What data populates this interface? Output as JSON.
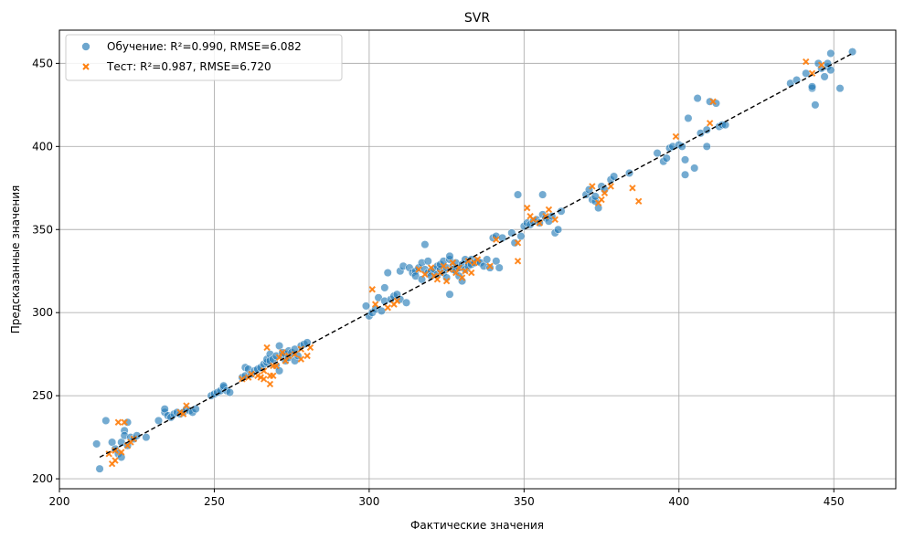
{
  "chart_data": {
    "type": "scatter",
    "title": "SVR",
    "xlabel": "Фактические значения",
    "ylabel": "Предсказанные значения",
    "xlim": [
      200,
      470
    ],
    "ylim": [
      194,
      470
    ],
    "xticks": [
      200,
      250,
      300,
      350,
      400,
      450
    ],
    "yticks": [
      200,
      250,
      300,
      350,
      400,
      450
    ],
    "grid": true,
    "legend_position": "top-left",
    "reference_line": {
      "style": "dashed",
      "color": "#000000",
      "from": [
        213,
        213
      ],
      "to": [
        456,
        456
      ]
    },
    "series": [
      {
        "name": "Обучение: R²=0.990, RMSE=6.082",
        "marker": "circle",
        "color": "#1f77b4",
        "points": [
          [
            212,
            221
          ],
          [
            213,
            206
          ],
          [
            215,
            235
          ],
          [
            217,
            222
          ],
          [
            218,
            218
          ],
          [
            219,
            215
          ],
          [
            220,
            213
          ],
          [
            220,
            222
          ],
          [
            221,
            229
          ],
          [
            221,
            226
          ],
          [
            222,
            234
          ],
          [
            222,
            220
          ],
          [
            223,
            225
          ],
          [
            224,
            224
          ],
          [
            225,
            226
          ],
          [
            228,
            225
          ],
          [
            232,
            235
          ],
          [
            234,
            240
          ],
          [
            234,
            242
          ],
          [
            235,
            238
          ],
          [
            236,
            237
          ],
          [
            237,
            239
          ],
          [
            238,
            240
          ],
          [
            239,
            239
          ],
          [
            240,
            240
          ],
          [
            241,
            242
          ],
          [
            242,
            241
          ],
          [
            243,
            240
          ],
          [
            244,
            242
          ],
          [
            249,
            250
          ],
          [
            250,
            251
          ],
          [
            251,
            252
          ],
          [
            252,
            253
          ],
          [
            253,
            255
          ],
          [
            253,
            256
          ],
          [
            254,
            253
          ],
          [
            255,
            252
          ],
          [
            259,
            261
          ],
          [
            260,
            262
          ],
          [
            260,
            267
          ],
          [
            261,
            266
          ],
          [
            262,
            263
          ],
          [
            263,
            265
          ],
          [
            264,
            266
          ],
          [
            265,
            267
          ],
          [
            266,
            269
          ],
          [
            267,
            270
          ],
          [
            267,
            272
          ],
          [
            268,
            275
          ],
          [
            268,
            271
          ],
          [
            269,
            272
          ],
          [
            270,
            274
          ],
          [
            270,
            268
          ],
          [
            271,
            280
          ],
          [
            271,
            265
          ],
          [
            272,
            274
          ],
          [
            272,
            276
          ],
          [
            273,
            275
          ],
          [
            273,
            271
          ],
          [
            274,
            273
          ],
          [
            274,
            277
          ],
          [
            275,
            276
          ],
          [
            276,
            271
          ],
          [
            276,
            278
          ],
          [
            277,
            274
          ],
          [
            278,
            280
          ],
          [
            279,
            281
          ],
          [
            280,
            282
          ],
          [
            299,
            304
          ],
          [
            300,
            298
          ],
          [
            301,
            300
          ],
          [
            302,
            302
          ],
          [
            303,
            309
          ],
          [
            304,
            301
          ],
          [
            305,
            307
          ],
          [
            305,
            315
          ],
          [
            306,
            324
          ],
          [
            307,
            308
          ],
          [
            308,
            310
          ],
          [
            309,
            311
          ],
          [
            310,
            308
          ],
          [
            310,
            325
          ],
          [
            311,
            328
          ],
          [
            312,
            306
          ],
          [
            313,
            327
          ],
          [
            314,
            324
          ],
          [
            315,
            325
          ],
          [
            315,
            322
          ],
          [
            316,
            327
          ],
          [
            317,
            320
          ],
          [
            317,
            330
          ],
          [
            318,
            341
          ],
          [
            318,
            326
          ],
          [
            319,
            324
          ],
          [
            319,
            331
          ],
          [
            320,
            325
          ],
          [
            320,
            322
          ],
          [
            321,
            326
          ],
          [
            322,
            323
          ],
          [
            322,
            328
          ],
          [
            323,
            326
          ],
          [
            323,
            329
          ],
          [
            324,
            324
          ],
          [
            324,
            331
          ],
          [
            325,
            327
          ],
          [
            325,
            321
          ],
          [
            326,
            332
          ],
          [
            326,
            311
          ],
          [
            326,
            334
          ],
          [
            327,
            328
          ],
          [
            327,
            326
          ],
          [
            328,
            330
          ],
          [
            328,
            325
          ],
          [
            329,
            327
          ],
          [
            329,
            322
          ],
          [
            330,
            329
          ],
          [
            330,
            319
          ],
          [
            331,
            332
          ],
          [
            331,
            326
          ],
          [
            332,
            330
          ],
          [
            332,
            328
          ],
          [
            333,
            332
          ],
          [
            333,
            329
          ],
          [
            334,
            330
          ],
          [
            335,
            331
          ],
          [
            336,
            330
          ],
          [
            337,
            328
          ],
          [
            338,
            332
          ],
          [
            339,
            327
          ],
          [
            340,
            345
          ],
          [
            341,
            346
          ],
          [
            341,
            331
          ],
          [
            342,
            327
          ],
          [
            343,
            345
          ],
          [
            346,
            348
          ],
          [
            347,
            342
          ],
          [
            348,
            371
          ],
          [
            349,
            346
          ],
          [
            350,
            352
          ],
          [
            351,
            354
          ],
          [
            352,
            353
          ],
          [
            353,
            355
          ],
          [
            354,
            356
          ],
          [
            355,
            354
          ],
          [
            356,
            359
          ],
          [
            356,
            371
          ],
          [
            357,
            357
          ],
          [
            358,
            355
          ],
          [
            359,
            358
          ],
          [
            360,
            348
          ],
          [
            361,
            350
          ],
          [
            362,
            361
          ],
          [
            370,
            371
          ],
          [
            371,
            374
          ],
          [
            372,
            368
          ],
          [
            373,
            367
          ],
          [
            373,
            370
          ],
          [
            374,
            363
          ],
          [
            375,
            376
          ],
          [
            376,
            374
          ],
          [
            378,
            380
          ],
          [
            379,
            382
          ],
          [
            384,
            384
          ],
          [
            393,
            396
          ],
          [
            395,
            391
          ],
          [
            396,
            393
          ],
          [
            397,
            399
          ],
          [
            398,
            400
          ],
          [
            400,
            401
          ],
          [
            401,
            400
          ],
          [
            402,
            392
          ],
          [
            402,
            383
          ],
          [
            403,
            417
          ],
          [
            405,
            387
          ],
          [
            406,
            429
          ],
          [
            407,
            408
          ],
          [
            409,
            410
          ],
          [
            409,
            400
          ],
          [
            410,
            427
          ],
          [
            412,
            426
          ],
          [
            413,
            412
          ],
          [
            414,
            413
          ],
          [
            415,
            413
          ],
          [
            436,
            438
          ],
          [
            438,
            440
          ],
          [
            441,
            444
          ],
          [
            443,
            435
          ],
          [
            443,
            436
          ],
          [
            444,
            425
          ],
          [
            445,
            450
          ],
          [
            446,
            447
          ],
          [
            447,
            442
          ],
          [
            448,
            448
          ],
          [
            448,
            450
          ],
          [
            449,
            446
          ],
          [
            449,
            456
          ],
          [
            452,
            435
          ],
          [
            456,
            457
          ]
        ]
      },
      {
        "name": "Тест: R²=0.987, RMSE=6.720",
        "marker": "x",
        "color": "#ff7f0e",
        "points": [
          [
            216,
            215
          ],
          [
            217,
            209
          ],
          [
            218,
            211
          ],
          [
            218,
            217
          ],
          [
            219,
            234
          ],
          [
            220,
            216
          ],
          [
            221,
            234
          ],
          [
            222,
            220
          ],
          [
            223,
            222
          ],
          [
            224,
            224
          ],
          [
            239,
            240
          ],
          [
            240,
            239
          ],
          [
            241,
            244
          ],
          [
            259,
            260
          ],
          [
            261,
            261
          ],
          [
            262,
            263
          ],
          [
            264,
            262
          ],
          [
            265,
            261
          ],
          [
            266,
            260
          ],
          [
            266,
            265
          ],
          [
            267,
            279
          ],
          [
            268,
            262
          ],
          [
            268,
            257
          ],
          [
            269,
            262
          ],
          [
            269,
            268
          ],
          [
            270,
            268
          ],
          [
            271,
            273
          ],
          [
            272,
            276
          ],
          [
            273,
            271
          ],
          [
            274,
            274
          ],
          [
            276,
            275
          ],
          [
            278,
            272
          ],
          [
            278,
            278
          ],
          [
            280,
            274
          ],
          [
            281,
            279
          ],
          [
            301,
            314
          ],
          [
            302,
            305
          ],
          [
            306,
            303
          ],
          [
            308,
            305
          ],
          [
            309,
            307
          ],
          [
            316,
            326
          ],
          [
            318,
            323
          ],
          [
            320,
            327
          ],
          [
            321,
            322
          ],
          [
            322,
            320
          ],
          [
            323,
            324
          ],
          [
            324,
            328
          ],
          [
            325,
            319
          ],
          [
            326,
            326
          ],
          [
            327,
            330
          ],
          [
            328,
            324
          ],
          [
            329,
            327
          ],
          [
            330,
            321
          ],
          [
            331,
            325
          ],
          [
            332,
            331
          ],
          [
            333,
            324
          ],
          [
            334,
            330
          ],
          [
            335,
            332
          ],
          [
            339,
            328
          ],
          [
            341,
            344
          ],
          [
            348,
            342
          ],
          [
            348,
            331
          ],
          [
            351,
            363
          ],
          [
            352,
            358
          ],
          [
            353,
            356
          ],
          [
            355,
            354
          ],
          [
            357,
            358
          ],
          [
            358,
            362
          ],
          [
            360,
            356
          ],
          [
            372,
            376
          ],
          [
            374,
            366
          ],
          [
            375,
            368
          ],
          [
            376,
            372
          ],
          [
            378,
            376
          ],
          [
            385,
            375
          ],
          [
            387,
            367
          ],
          [
            399,
            406
          ],
          [
            410,
            414
          ],
          [
            411,
            427
          ],
          [
            441,
            451
          ],
          [
            443,
            444
          ],
          [
            446,
            449
          ]
        ]
      }
    ]
  }
}
